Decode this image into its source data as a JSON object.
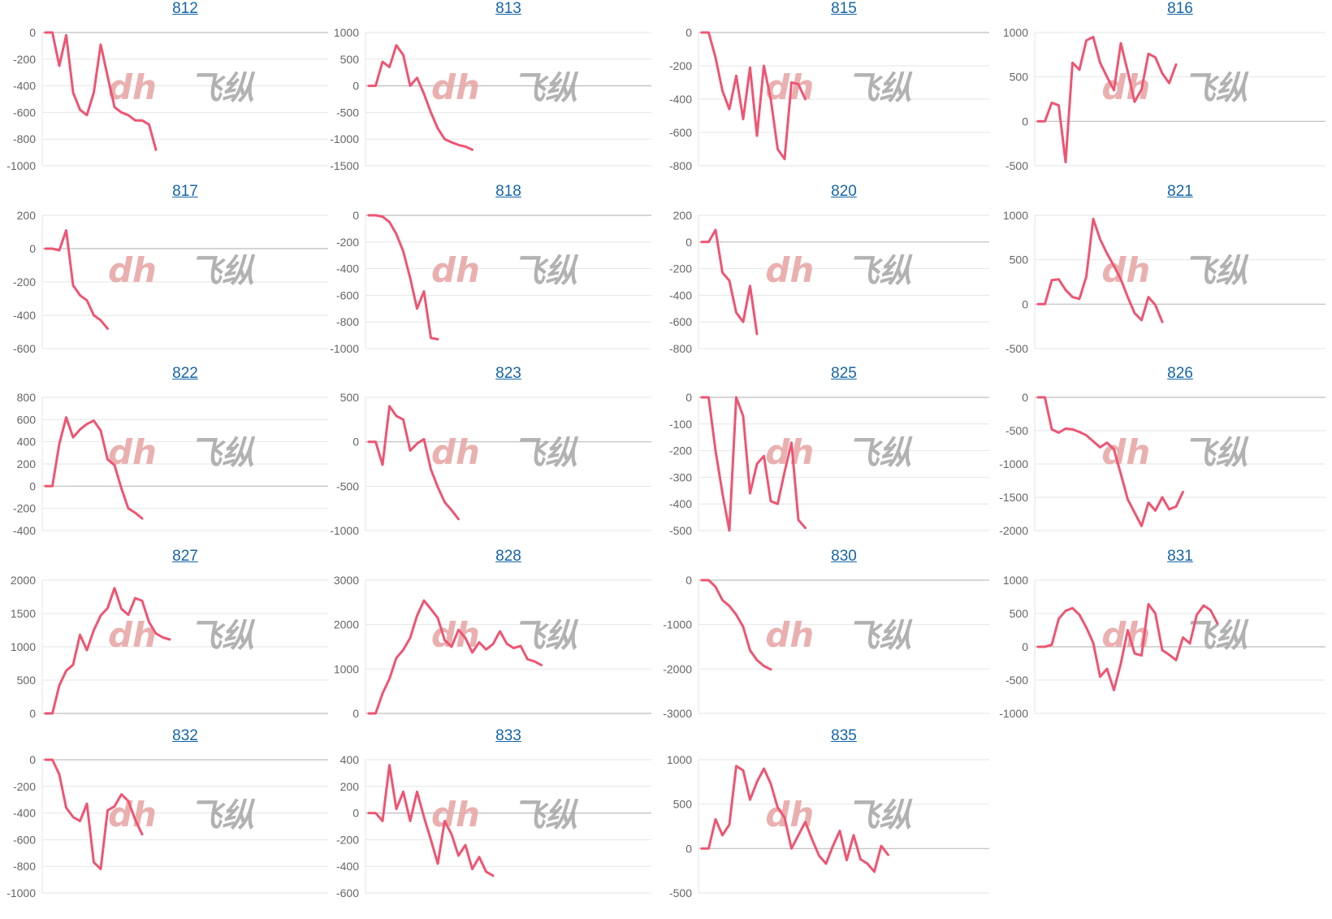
{
  "colors": {
    "line": "#ee5572",
    "grid": "#e6e6e6",
    "zero_line": "#bdbdbd",
    "axis_text": "#666666",
    "title_link": "#1565a8",
    "watermark_a": "#e8a8a8",
    "watermark_b": "#aaaaaa"
  },
  "watermark": "dh 飞纵",
  "chart_data": [
    {
      "type": "line",
      "title": "812",
      "ylim": [
        -1000,
        0
      ],
      "yticks": [
        0,
        -200,
        -400,
        -600,
        -800,
        -1000
      ],
      "grid": true,
      "series": [
        {
          "values": [
            0,
            0,
            -250,
            -20,
            -450,
            -580,
            -620,
            -450,
            -90,
            -330,
            -560,
            -600,
            -620,
            -660,
            -660,
            -690,
            -880
          ]
        }
      ]
    },
    {
      "type": "line",
      "title": "813",
      "ylim": [
        -1500,
        1000
      ],
      "yticks": [
        1000,
        500,
        0,
        -500,
        -1000,
        -1500
      ],
      "grid": true,
      "series": [
        {
          "values": [
            0,
            0,
            450,
            350,
            760,
            580,
            0,
            150,
            -150,
            -500,
            -800,
            -1000,
            -1060,
            -1110,
            -1140,
            -1200
          ]
        }
      ]
    },
    {
      "type": "line",
      "title": "815",
      "ylim": [
        -800,
        0
      ],
      "yticks": [
        0,
        -200,
        -400,
        -600,
        -800
      ],
      "grid": true,
      "series": [
        {
          "values": [
            0,
            0,
            -150,
            -350,
            -460,
            -260,
            -520,
            -210,
            -620,
            -200,
            -400,
            -700,
            -760,
            -300,
            -310,
            -400
          ]
        }
      ]
    },
    {
      "type": "line",
      "title": "816",
      "ylim": [
        -500,
        1000
      ],
      "yticks": [
        1000,
        500,
        0,
        -500
      ],
      "grid": true,
      "series": [
        {
          "values": [
            0,
            0,
            210,
            180,
            -460,
            660,
            580,
            910,
            950,
            660,
            500,
            350,
            880,
            560,
            220,
            360,
            760,
            720,
            540,
            430,
            640
          ]
        }
      ]
    },
    {
      "type": "line",
      "title": "817",
      "ylim": [
        -600,
        200
      ],
      "yticks": [
        200,
        0,
        -200,
        -400,
        -600
      ],
      "grid": true,
      "series": [
        {
          "values": [
            0,
            0,
            -10,
            110,
            -220,
            -280,
            -310,
            -400,
            -430,
            -480
          ]
        }
      ]
    },
    {
      "type": "line",
      "title": "818",
      "ylim": [
        -1000,
        0
      ],
      "yticks": [
        0,
        -200,
        -400,
        -600,
        -800,
        -1000
      ],
      "grid": true,
      "series": [
        {
          "values": [
            0,
            0,
            -10,
            -50,
            -140,
            -270,
            -470,
            -700,
            -570,
            -920,
            -930
          ]
        }
      ]
    },
    {
      "type": "line",
      "title": "820",
      "ylim": [
        -800,
        200
      ],
      "yticks": [
        200,
        0,
        -200,
        -400,
        -600,
        -800
      ],
      "grid": true,
      "series": [
        {
          "values": [
            0,
            0,
            90,
            -230,
            -290,
            -530,
            -600,
            -330,
            -690
          ]
        }
      ]
    },
    {
      "type": "line",
      "title": "821",
      "ylim": [
        -500,
        1000
      ],
      "yticks": [
        1000,
        500,
        0,
        -500
      ],
      "grid": true,
      "series": [
        {
          "values": [
            0,
            0,
            270,
            280,
            160,
            80,
            60,
            310,
            960,
            730,
            570,
            430,
            280,
            80,
            -100,
            -180,
            80,
            -10,
            -200
          ]
        }
      ]
    },
    {
      "type": "line",
      "title": "822",
      "ylim": [
        -400,
        800
      ],
      "yticks": [
        800,
        600,
        400,
        200,
        0,
        -200,
        -400
      ],
      "grid": true,
      "series": [
        {
          "values": [
            0,
            0,
            380,
            620,
            440,
            510,
            560,
            590,
            500,
            240,
            190,
            -20,
            -200,
            -240,
            -290
          ]
        }
      ]
    },
    {
      "type": "line",
      "title": "823",
      "ylim": [
        -1000,
        500
      ],
      "yticks": [
        500,
        0,
        -500,
        -1000
      ],
      "grid": true,
      "series": [
        {
          "values": [
            0,
            0,
            -260,
            400,
            290,
            250,
            -100,
            -20,
            30,
            -310,
            -510,
            -680,
            -770,
            -870
          ]
        }
      ]
    },
    {
      "type": "line",
      "title": "825",
      "ylim": [
        -500,
        0
      ],
      "yticks": [
        0,
        -100,
        -200,
        -300,
        -400,
        -500
      ],
      "grid": true,
      "series": [
        {
          "values": [
            0,
            0,
            -200,
            -360,
            -500,
            0,
            -70,
            -360,
            -250,
            -220,
            -390,
            -400,
            -280,
            -170,
            -460,
            -490
          ]
        }
      ]
    },
    {
      "type": "line",
      "title": "826",
      "ylim": [
        -2000,
        0
      ],
      "yticks": [
        0,
        -500,
        -1000,
        -1500,
        -2000
      ],
      "grid": true,
      "series": [
        {
          "values": [
            0,
            0,
            -480,
            -530,
            -470,
            -480,
            -520,
            -570,
            -660,
            -750,
            -680,
            -780,
            -1150,
            -1530,
            -1730,
            -1930,
            -1580,
            -1700,
            -1500,
            -1680,
            -1640,
            -1420
          ]
        }
      ]
    },
    {
      "type": "line",
      "title": "827",
      "ylim": [
        0,
        2000
      ],
      "yticks": [
        2000,
        1500,
        1000,
        500,
        0
      ],
      "grid": true,
      "series": [
        {
          "values": [
            0,
            0,
            420,
            640,
            730,
            1180,
            950,
            1250,
            1470,
            1580,
            1880,
            1570,
            1480,
            1730,
            1690,
            1370,
            1200,
            1140,
            1110
          ]
        }
      ]
    },
    {
      "type": "line",
      "title": "828",
      "ylim": [
        0,
        3000
      ],
      "yticks": [
        3000,
        2000,
        1000,
        0
      ],
      "grid": true,
      "series": [
        {
          "values": [
            0,
            0,
            450,
            780,
            1250,
            1430,
            1700,
            2200,
            2540,
            2350,
            2150,
            1650,
            1500,
            1880,
            1700,
            1370,
            1600,
            1440,
            1560,
            1850,
            1570,
            1470,
            1520,
            1220,
            1170,
            1090
          ]
        }
      ]
    },
    {
      "type": "line",
      "title": "830",
      "ylim": [
        -3000,
        0
      ],
      "yticks": [
        0,
        -1000,
        -2000,
        -3000
      ],
      "grid": true,
      "series": [
        {
          "values": [
            0,
            0,
            -150,
            -450,
            -580,
            -780,
            -1050,
            -1580,
            -1800,
            -1930,
            -2010
          ]
        }
      ]
    },
    {
      "type": "line",
      "title": "831",
      "ylim": [
        -1000,
        1000
      ],
      "yticks": [
        1000,
        500,
        0,
        -500,
        -1000
      ],
      "grid": true,
      "series": [
        {
          "values": [
            0,
            0,
            30,
            420,
            540,
            580,
            480,
            290,
            60,
            -450,
            -330,
            -650,
            -250,
            250,
            -100,
            -130,
            640,
            500,
            -50,
            -120,
            -200,
            140,
            50,
            480,
            620,
            550,
            350
          ]
        }
      ]
    },
    {
      "type": "line",
      "title": "832",
      "ylim": [
        -1000,
        0
      ],
      "yticks": [
        0,
        -200,
        -400,
        -600,
        -800,
        -1000
      ],
      "grid": true,
      "series": [
        {
          "values": [
            0,
            0,
            -110,
            -360,
            -430,
            -460,
            -330,
            -770,
            -820,
            -380,
            -350,
            -260,
            -310,
            -450,
            -560
          ]
        }
      ]
    },
    {
      "type": "line",
      "title": "833",
      "ylim": [
        -600,
        400
      ],
      "yticks": [
        400,
        200,
        0,
        -200,
        -400,
        -600
      ],
      "grid": true,
      "series": [
        {
          "values": [
            0,
            0,
            -60,
            360,
            30,
            160,
            -60,
            160,
            -30,
            -200,
            -380,
            -60,
            -160,
            -320,
            -240,
            -420,
            -330,
            -440,
            -470
          ]
        }
      ]
    },
    {
      "type": "line",
      "title": "835",
      "ylim": [
        -500,
        1000
      ],
      "yticks": [
        1000,
        500,
        0,
        -500
      ],
      "grid": true,
      "series": [
        {
          "values": [
            0,
            0,
            330,
            150,
            270,
            930,
            880,
            550,
            750,
            900,
            730,
            460,
            350,
            0,
            150,
            300,
            100,
            -80,
            -170,
            30,
            200,
            -130,
            150,
            -120,
            -170,
            -260,
            30,
            -70
          ]
        }
      ]
    }
  ]
}
